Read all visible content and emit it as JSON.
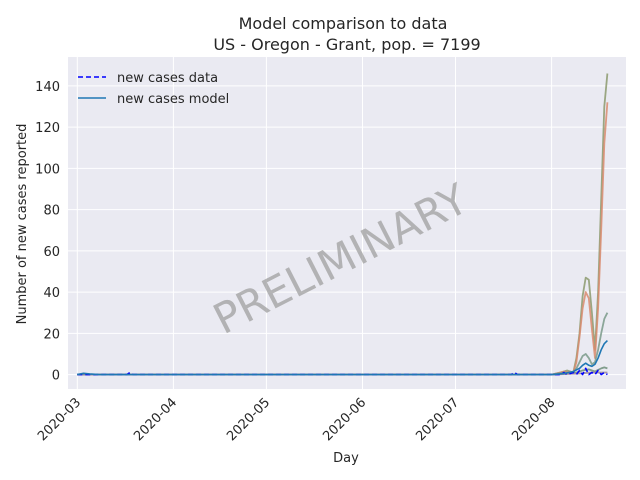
{
  "chart_data": {
    "type": "line",
    "title": "Model comparison to data",
    "subtitle": "US - Oregon - Grant, pop. = 7199",
    "xlabel": "Day",
    "ylabel": "Number of new cases reported",
    "watermark": "PRELIMINARY",
    "x_ticks": [
      "2020-03",
      "2020-04",
      "2020-05",
      "2020-06",
      "2020-07",
      "2020-08"
    ],
    "y_ticks": [
      "0",
      "20",
      "40",
      "60",
      "80",
      "100",
      "120",
      "140"
    ],
    "xlim": [
      "2020-02-27",
      "2020-08-25"
    ],
    "ylim": [
      -7,
      154
    ],
    "grid": true,
    "legend_position": "top-left",
    "legend": [
      {
        "label": "new cases data",
        "style": "dashed",
        "color": "#0000ff"
      },
      {
        "label": "new cases model",
        "style": "solid",
        "color": "#1f77b4"
      }
    ],
    "series": [
      {
        "name": "new cases data",
        "color": "#0000ff",
        "style": "dashed",
        "points": [
          [
            "2020-03-01",
            0
          ],
          [
            "2020-03-04",
            0
          ],
          [
            "2020-03-10",
            0
          ],
          [
            "2020-03-17",
            0
          ],
          [
            "2020-03-18",
            1
          ],
          [
            "2020-03-19",
            0
          ],
          [
            "2020-04-15",
            0
          ],
          [
            "2020-05-15",
            0
          ],
          [
            "2020-06-15",
            0
          ],
          [
            "2020-07-15",
            0
          ],
          [
            "2020-07-19",
            0
          ],
          [
            "2020-07-20",
            1
          ],
          [
            "2020-07-21",
            0
          ],
          [
            "2020-08-01",
            0
          ],
          [
            "2020-08-04",
            0
          ],
          [
            "2020-08-05",
            1
          ],
          [
            "2020-08-06",
            0
          ],
          [
            "2020-08-08",
            1
          ],
          [
            "2020-08-09",
            0
          ],
          [
            "2020-08-10",
            2
          ],
          [
            "2020-08-11",
            0
          ],
          [
            "2020-08-12",
            3
          ],
          [
            "2020-08-13",
            0
          ],
          [
            "2020-08-14",
            1
          ],
          [
            "2020-08-15",
            0
          ],
          [
            "2020-08-16",
            2
          ],
          [
            "2020-08-17",
            0
          ],
          [
            "2020-08-18",
            1
          ],
          [
            "2020-08-19",
            0
          ]
        ]
      },
      {
        "name": "new cases model",
        "color": "#1f77b4",
        "style": "solid",
        "points": [
          [
            "2020-03-01",
            0
          ],
          [
            "2020-03-03",
            0.6
          ],
          [
            "2020-03-05",
            0.3
          ],
          [
            "2020-03-08",
            0
          ],
          [
            "2020-04-01",
            0
          ],
          [
            "2020-05-01",
            0
          ],
          [
            "2020-06-01",
            0
          ],
          [
            "2020-07-01",
            0
          ],
          [
            "2020-08-01",
            0
          ],
          [
            "2020-08-05",
            0.5
          ],
          [
            "2020-08-08",
            1.5
          ],
          [
            "2020-08-10",
            3
          ],
          [
            "2020-08-11",
            4.5
          ],
          [
            "2020-08-12",
            5.5
          ],
          [
            "2020-08-13",
            4.5
          ],
          [
            "2020-08-14",
            4
          ],
          [
            "2020-08-15",
            5
          ],
          [
            "2020-08-16",
            8
          ],
          [
            "2020-08-17",
            12
          ],
          [
            "2020-08-18",
            15
          ],
          [
            "2020-08-19",
            16.5
          ]
        ]
      },
      {
        "color": "#8c9a6e",
        "style": "solid",
        "points": [
          [
            "2020-03-01",
            0
          ],
          [
            "2020-08-01",
            0
          ],
          [
            "2020-08-04",
            1
          ],
          [
            "2020-08-06",
            2
          ],
          [
            "2020-08-08",
            1
          ],
          [
            "2020-08-09",
            8
          ],
          [
            "2020-08-10",
            20
          ],
          [
            "2020-08-11",
            38
          ],
          [
            "2020-08-12",
            47
          ],
          [
            "2020-08-13",
            46
          ],
          [
            "2020-08-14",
            30
          ],
          [
            "2020-08-15",
            12
          ],
          [
            "2020-08-16",
            40
          ],
          [
            "2020-08-17",
            85
          ],
          [
            "2020-08-18",
            130
          ],
          [
            "2020-08-19",
            146
          ]
        ]
      },
      {
        "color": "#d98b6e",
        "style": "solid",
        "points": [
          [
            "2020-03-01",
            0
          ],
          [
            "2020-08-01",
            0
          ],
          [
            "2020-08-05",
            1.5
          ],
          [
            "2020-08-08",
            1
          ],
          [
            "2020-08-09",
            6
          ],
          [
            "2020-08-10",
            18
          ],
          [
            "2020-08-11",
            32
          ],
          [
            "2020-08-12",
            40
          ],
          [
            "2020-08-13",
            37
          ],
          [
            "2020-08-14",
            22
          ],
          [
            "2020-08-15",
            8
          ],
          [
            "2020-08-16",
            32
          ],
          [
            "2020-08-17",
            70
          ],
          [
            "2020-08-18",
            112
          ],
          [
            "2020-08-19",
            132
          ]
        ]
      },
      {
        "color": "#7a9a8a",
        "style": "solid",
        "points": [
          [
            "2020-03-01",
            0
          ],
          [
            "2020-08-01",
            0
          ],
          [
            "2020-08-05",
            1
          ],
          [
            "2020-08-08",
            1
          ],
          [
            "2020-08-09",
            3
          ],
          [
            "2020-08-10",
            6
          ],
          [
            "2020-08-11",
            9
          ],
          [
            "2020-08-12",
            10
          ],
          [
            "2020-08-13",
            8
          ],
          [
            "2020-08-14",
            5
          ],
          [
            "2020-08-15",
            6
          ],
          [
            "2020-08-16",
            12
          ],
          [
            "2020-08-17",
            20
          ],
          [
            "2020-08-18",
            27
          ],
          [
            "2020-08-19",
            30
          ]
        ]
      },
      {
        "color": "#6e8f7a",
        "style": "solid",
        "points": [
          [
            "2020-03-01",
            0
          ],
          [
            "2020-08-01",
            0
          ],
          [
            "2020-08-06",
            0.5
          ],
          [
            "2020-08-09",
            1
          ],
          [
            "2020-08-11",
            2
          ],
          [
            "2020-08-13",
            2.5
          ],
          [
            "2020-08-15",
            1.5
          ],
          [
            "2020-08-17",
            3
          ],
          [
            "2020-08-18",
            3.5
          ],
          [
            "2020-08-19",
            3
          ]
        ]
      },
      {
        "color": "#9a8a9a",
        "style": "solid",
        "points": [
          [
            "2020-03-01",
            0
          ],
          [
            "2020-08-01",
            0
          ],
          [
            "2020-08-10",
            0.5
          ],
          [
            "2020-08-14",
            1
          ],
          [
            "2020-08-19",
            1
          ]
        ]
      }
    ]
  }
}
